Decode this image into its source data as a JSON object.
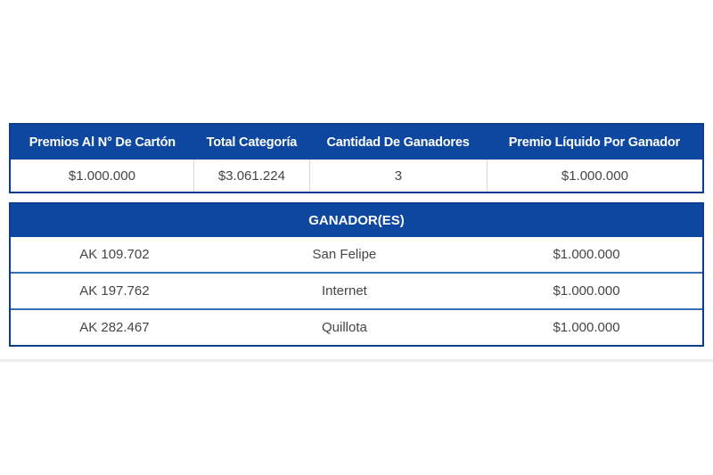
{
  "colors": {
    "primary_blue": "#0d47a0",
    "border_blue": "#0b3e8d",
    "row_divider_blue": "#3570b5",
    "cell_divider_gray": "#d8d8d8",
    "text_dark": "#454545"
  },
  "summary_table": {
    "headers": [
      "Premios Al N° De Cartón",
      "Total Categoría",
      "Cantidad De Ganadores",
      "Premio Líquido Por Ganador"
    ],
    "row": {
      "premio_carton": "$1.000.000",
      "total_categoria": "$3.061.224",
      "cantidad_ganadores": "3",
      "premio_liquido": "$1.000.000"
    }
  },
  "winners_table": {
    "title": "GANADOR(ES)",
    "rows": [
      {
        "card_number": "AK 109.702",
        "location": "San Felipe",
        "prize": "$1.000.000"
      },
      {
        "card_number": "AK 197.762",
        "location": "Internet",
        "prize": "$1.000.000"
      },
      {
        "card_number": "AK 282.467",
        "location": "Quillota",
        "prize": "$1.000.000"
      }
    ]
  }
}
